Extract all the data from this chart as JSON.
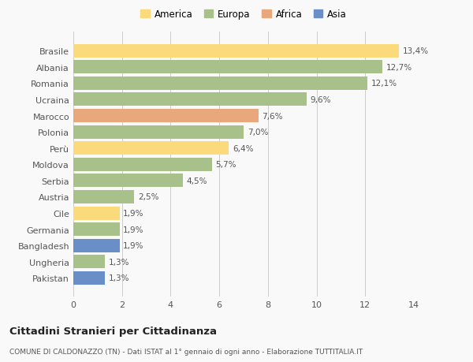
{
  "categories": [
    "Brasile",
    "Albania",
    "Romania",
    "Ucraina",
    "Marocco",
    "Polonia",
    "Perù",
    "Moldova",
    "Serbia",
    "Austria",
    "Cile",
    "Germania",
    "Bangladesh",
    "Ungheria",
    "Pakistan"
  ],
  "values": [
    13.4,
    12.7,
    12.1,
    9.6,
    7.6,
    7.0,
    6.4,
    5.7,
    4.5,
    2.5,
    1.9,
    1.9,
    1.9,
    1.3,
    1.3
  ],
  "labels": [
    "13,4%",
    "12,7%",
    "12,1%",
    "9,6%",
    "7,6%",
    "7,0%",
    "6,4%",
    "5,7%",
    "4,5%",
    "2,5%",
    "1,9%",
    "1,9%",
    "1,9%",
    "1,3%",
    "1,3%"
  ],
  "continents": [
    "America",
    "Europa",
    "Europa",
    "Europa",
    "Africa",
    "Europa",
    "America",
    "Europa",
    "Europa",
    "Europa",
    "America",
    "Europa",
    "Asia",
    "Europa",
    "Asia"
  ],
  "colors": {
    "America": "#FADA7A",
    "Europa": "#A8C08A",
    "Africa": "#E8A87C",
    "Asia": "#6A8FC8"
  },
  "legend_order": [
    "America",
    "Europa",
    "Africa",
    "Asia"
  ],
  "title1": "Cittadini Stranieri per Cittadinanza",
  "title2": "COMUNE DI CALDONAZZO (TN) - Dati ISTAT al 1° gennaio di ogni anno - Elaborazione TUTTITALIA.IT",
  "xlim": [
    0,
    14
  ],
  "xticks": [
    0,
    2,
    4,
    6,
    8,
    10,
    12,
    14
  ],
  "bg_color": "#f9f9f9"
}
